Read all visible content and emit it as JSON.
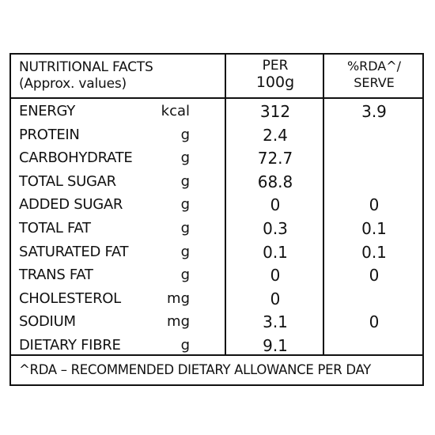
{
  "header": {
    "title_line1": "NUTRITIONAL FACTS",
    "title_line2": "(Approx. values)",
    "per_label": "PER",
    "per_value": "100g",
    "rda_label_line1": "%RDA^/",
    "rda_label_line2": "SERVE"
  },
  "rows": [
    {
      "name": "ENERGY",
      "unit": "kcal",
      "value": "312",
      "rda": "3.9"
    },
    {
      "name": "PROTEIN",
      "unit": "g",
      "value": "2.4",
      "rda": ""
    },
    {
      "name": "CARBOHYDRATE",
      "unit": "g",
      "value": "72.7",
      "rda": ""
    },
    {
      "name": "TOTAL SUGAR",
      "unit": "g",
      "value": "68.8",
      "rda": ""
    },
    {
      "name": "ADDED SUGAR",
      "unit": "g",
      "value": "0",
      "rda": "0"
    },
    {
      "name": "TOTAL FAT",
      "unit": "g",
      "value": "0.3",
      "rda": "0.1"
    },
    {
      "name": "SATURATED FAT",
      "unit": "g",
      "value": "0.1",
      "rda": "0.1"
    },
    {
      "name": "TRANS FAT",
      "unit": "g",
      "value": "0",
      "rda": "0"
    },
    {
      "name": "CHOLESTEROL",
      "unit": "mg",
      "value": "0",
      "rda": ""
    },
    {
      "name": "SODIUM",
      "unit": "mg",
      "value": "3.1",
      "rda": "0"
    },
    {
      "name": "DIETARY FIBRE",
      "unit": "g",
      "value": "9.1",
      "rda": ""
    }
  ],
  "footnote": "^RDA – RECOMMENDED DIETARY ALLOWANCE PER DAY"
}
